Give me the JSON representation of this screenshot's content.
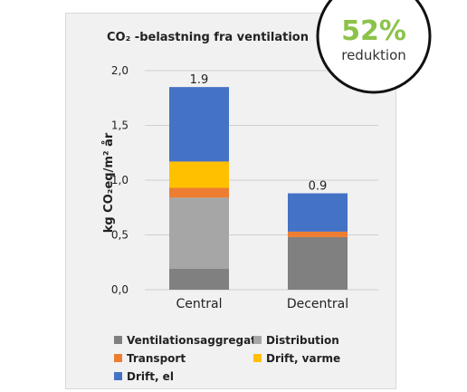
{
  "chart_data": {
    "type": "bar",
    "stacked": true,
    "title": "CO₂ -belastning fra ventilation",
    "ylabel": "kg CO₂eq/m² år",
    "ylim": [
      0,
      2.0
    ],
    "yticks": [
      "0,0",
      "0,5",
      "1,0",
      "1,5",
      "2,0"
    ],
    "grid": true,
    "legend_position": "bottom",
    "categories": [
      "Central",
      "Decentral"
    ],
    "totals_labels": [
      "1.9",
      "0.9"
    ],
    "series": [
      {
        "name": "Ventilationsaggregat",
        "color": "#808080",
        "values": [
          0.19,
          0.48
        ]
      },
      {
        "name": "Distribution",
        "color": "#a6a6a6",
        "values": [
          0.65,
          0.0
        ]
      },
      {
        "name": "Transport",
        "color": "#ed7d31",
        "values": [
          0.09,
          0.05
        ]
      },
      {
        "name": "Drift, varme",
        "color": "#ffc000",
        "values": [
          0.24,
          0.0
        ]
      },
      {
        "name": "Drift, el",
        "color": "#4472c4",
        "values": [
          0.68,
          0.35
        ]
      }
    ]
  },
  "badge": {
    "value": "52%",
    "label": "reduktion",
    "value_color": "#8bc34a"
  }
}
